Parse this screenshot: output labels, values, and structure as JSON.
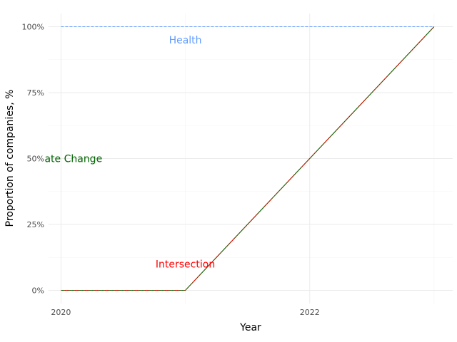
{
  "chart_data": {
    "type": "line",
    "title": "",
    "xlabel": "Year",
    "ylabel": "Proportion of companies, %",
    "xlim": [
      2019.9,
      2023.15
    ],
    "ylim": [
      -0.05,
      1.05
    ],
    "x_ticks": [
      2020,
      2022
    ],
    "x_tick_labels": [
      "2020",
      "2022"
    ],
    "y_ticks": [
      0,
      0.25,
      0.5,
      0.75,
      1.0
    ],
    "y_tick_labels": [
      "0%",
      "25%",
      "50%",
      "75%",
      "100%"
    ],
    "grid": true,
    "legend": "none",
    "series": [
      {
        "x": [
          2020,
          2021,
          2022,
          2023
        ],
        "y": [
          1.0,
          1.0,
          1.0,
          1.0
        ],
        "color": "#619CFF",
        "style": "dashed"
      },
      {
        "x": [
          2020,
          2021,
          2022,
          2023
        ],
        "y": [
          0.0,
          0.0,
          0.5,
          1.0
        ],
        "color": "#006400",
        "style": "solid"
      },
      {
        "x": [
          2020,
          2021,
          2022,
          2023
        ],
        "y": [
          0.0,
          0.0,
          0.5,
          1.0
        ],
        "color": "#FF0000",
        "style": "dotted"
      }
    ],
    "annotations": [
      {
        "text": "Health",
        "x": 2021.0,
        "y": 0.95,
        "color": "#619CFF"
      },
      {
        "text": "ate Change",
        "x": 2020.1,
        "y": 0.5,
        "color": "#006400"
      },
      {
        "text": "Intersection",
        "x": 2021.0,
        "y": 0.1,
        "color": "#FF0000"
      }
    ]
  }
}
